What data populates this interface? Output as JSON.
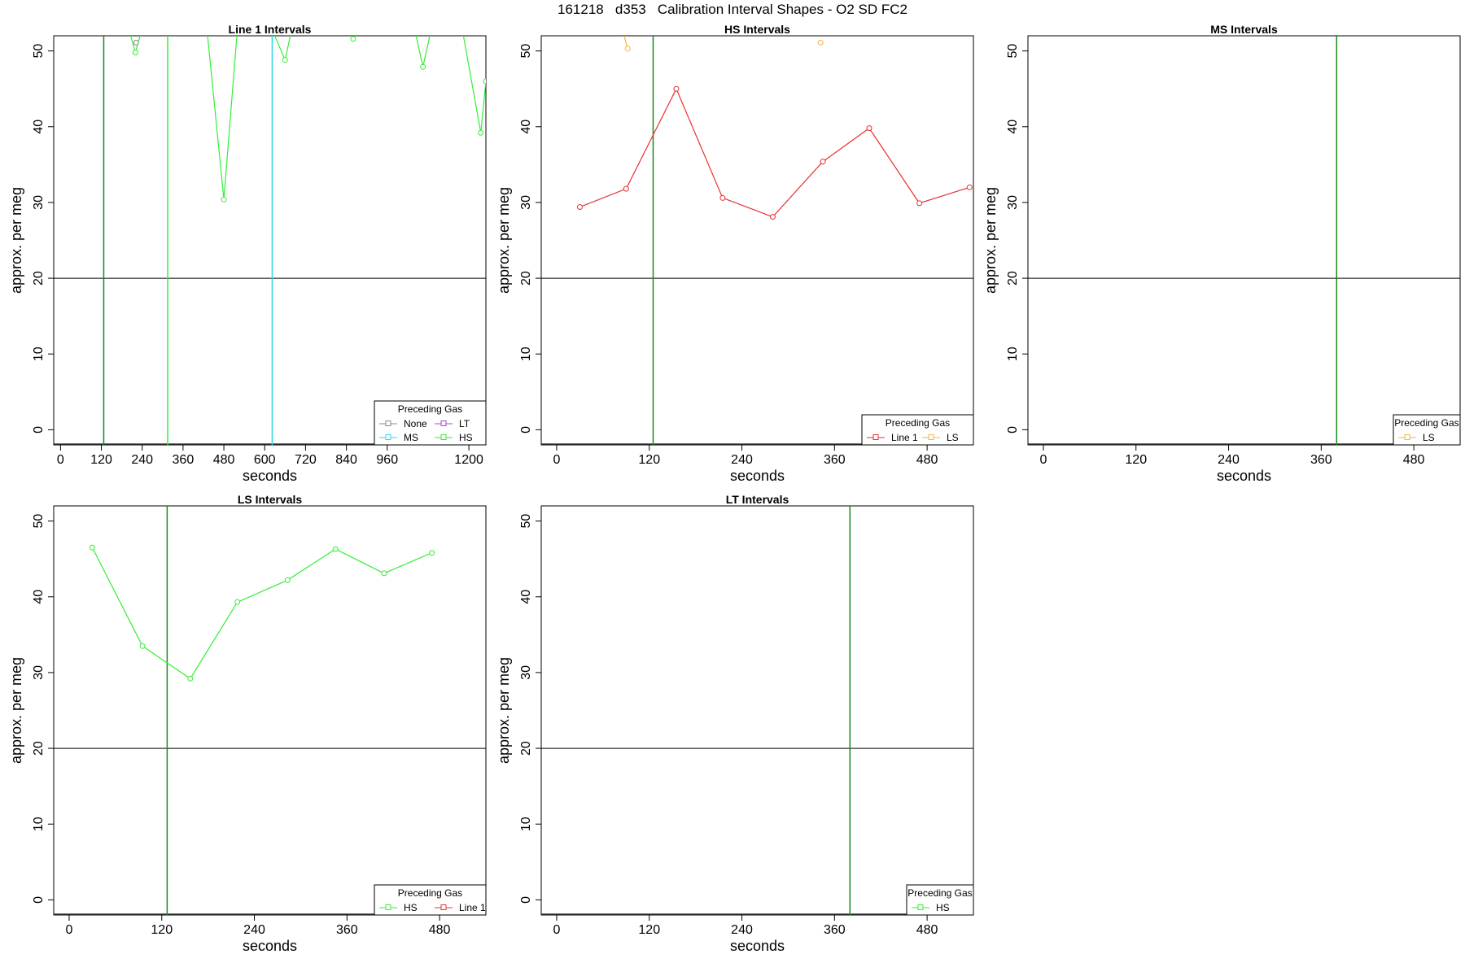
{
  "figure_title": "161218   d353   Calibration Interval Shapes - O2 SD FC2",
  "colors": {
    "None": "#888888",
    "LT": "#b040d0",
    "MS": "#30d8e8",
    "HS": "#33ee33",
    "Line 1": "#e83030",
    "LS": "#f5b342",
    "vline": "#1a8a1a",
    "hline": "#000000"
  },
  "chart_data": [
    {
      "type": "line",
      "title": "Line 1 Intervals",
      "xlabel": "seconds",
      "ylabel": "approx. per meg",
      "xlim": [
        -20,
        1250
      ],
      "ylim": [
        -2,
        52
      ],
      "x_ticks": [
        0,
        120,
        240,
        360,
        480,
        600,
        720,
        840,
        960,
        1200
      ],
      "y_ticks": [
        0,
        10,
        20,
        30,
        40,
        50
      ],
      "hline": 20,
      "vlines": [
        {
          "x": 127,
          "color_key": "vline"
        },
        {
          "x": 315,
          "color_key": "HS"
        },
        {
          "x": 622,
          "color_key": "MS"
        }
      ],
      "legend": {
        "title": "Preceding Gas",
        "position": "bottom-right",
        "columns": 2,
        "items": [
          "None",
          "LT",
          "MS",
          "HS"
        ]
      },
      "series": [
        {
          "color_key": "HS",
          "x": [
            200,
            220,
            240,
            430,
            480,
            520,
            620,
            660,
            680,
            840,
            860,
            880,
            1040,
            1065,
            1090,
            1180,
            1235,
            1250
          ],
          "y": [
            53,
            49.8,
            53,
            53,
            30.4,
            53,
            53,
            48.8,
            53,
            53,
            51.6,
            53,
            53,
            47.9,
            53,
            53,
            39.2,
            46
          ]
        },
        {
          "color_key": "None",
          "x": [
            222
          ],
          "y": [
            51.1
          ]
        }
      ]
    },
    {
      "type": "line",
      "title": "HS Intervals",
      "xlabel": "seconds",
      "ylabel": "approx. per meg",
      "xlim": [
        -20,
        540
      ],
      "ylim": [
        -2,
        52
      ],
      "x_ticks": [
        0,
        120,
        240,
        360,
        480
      ],
      "y_ticks": [
        0,
        10,
        20,
        30,
        40,
        50
      ],
      "hline": 20,
      "vlines": [
        {
          "x": 125,
          "color_key": "vline"
        }
      ],
      "legend": {
        "title": "Preceding Gas",
        "position": "bottom-right",
        "columns": 2,
        "items": [
          "Line 1",
          "LS"
        ]
      },
      "series": [
        {
          "color_key": "Line 1",
          "x": [
            30,
            90,
            155,
            215,
            280,
            345,
            405,
            470,
            535
          ],
          "y": [
            29.4,
            31.8,
            45.0,
            30.6,
            28.1,
            35.4,
            39.8,
            29.9,
            32.0
          ]
        },
        {
          "color_key": "LS",
          "x": [
            86,
            92
          ],
          "y": [
            52.5,
            50.3
          ],
          "line": true
        },
        {
          "color_key": "LS",
          "x": [
            342
          ],
          "y": [
            51.1
          ]
        }
      ]
    },
    {
      "type": "line",
      "title": "MS Intervals",
      "xlabel": "seconds",
      "ylabel": "approx. per meg",
      "xlim": [
        -20,
        540
      ],
      "ylim": [
        -2,
        52
      ],
      "x_ticks": [
        0,
        120,
        240,
        360,
        480
      ],
      "y_ticks": [
        0,
        10,
        20,
        30,
        40,
        50
      ],
      "hline": 20,
      "vlines": [
        {
          "x": 380,
          "color_key": "vline"
        }
      ],
      "legend": {
        "title": "Preceding Gas",
        "position": "bottom-right",
        "columns": 1,
        "items": [
          "LS"
        ]
      },
      "series": []
    },
    {
      "type": "line",
      "title": "LS Intervals",
      "xlabel": "seconds",
      "ylabel": "approx. per meg",
      "xlim": [
        -20,
        540
      ],
      "ylim": [
        -2,
        52
      ],
      "x_ticks": [
        0,
        120,
        240,
        360,
        480
      ],
      "y_ticks": [
        0,
        10,
        20,
        30,
        40,
        50
      ],
      "hline": 20,
      "vlines": [
        {
          "x": 127,
          "color_key": "vline"
        }
      ],
      "legend": {
        "title": "Preceding Gas",
        "position": "bottom-right",
        "columns": 2,
        "items": [
          "HS",
          "Line 1"
        ]
      },
      "series": [
        {
          "color_key": "HS",
          "x": [
            30,
            95,
            157,
            218,
            283,
            345,
            408,
            470
          ],
          "y": [
            46.5,
            33.5,
            29.2,
            39.3,
            42.2,
            46.3,
            43.1,
            45.8
          ]
        }
      ]
    },
    {
      "type": "line",
      "title": "LT Intervals",
      "xlabel": "seconds",
      "ylabel": "approx. per meg",
      "xlim": [
        -20,
        540
      ],
      "ylim": [
        -2,
        52
      ],
      "x_ticks": [
        0,
        120,
        240,
        360,
        480
      ],
      "y_ticks": [
        0,
        10,
        20,
        30,
        40,
        50
      ],
      "hline": 20,
      "vlines": [
        {
          "x": 380,
          "color_key": "vline"
        }
      ],
      "legend": {
        "title": "Preceding Gas",
        "position": "bottom-right",
        "columns": 1,
        "items": [
          "HS"
        ]
      },
      "series": []
    }
  ]
}
